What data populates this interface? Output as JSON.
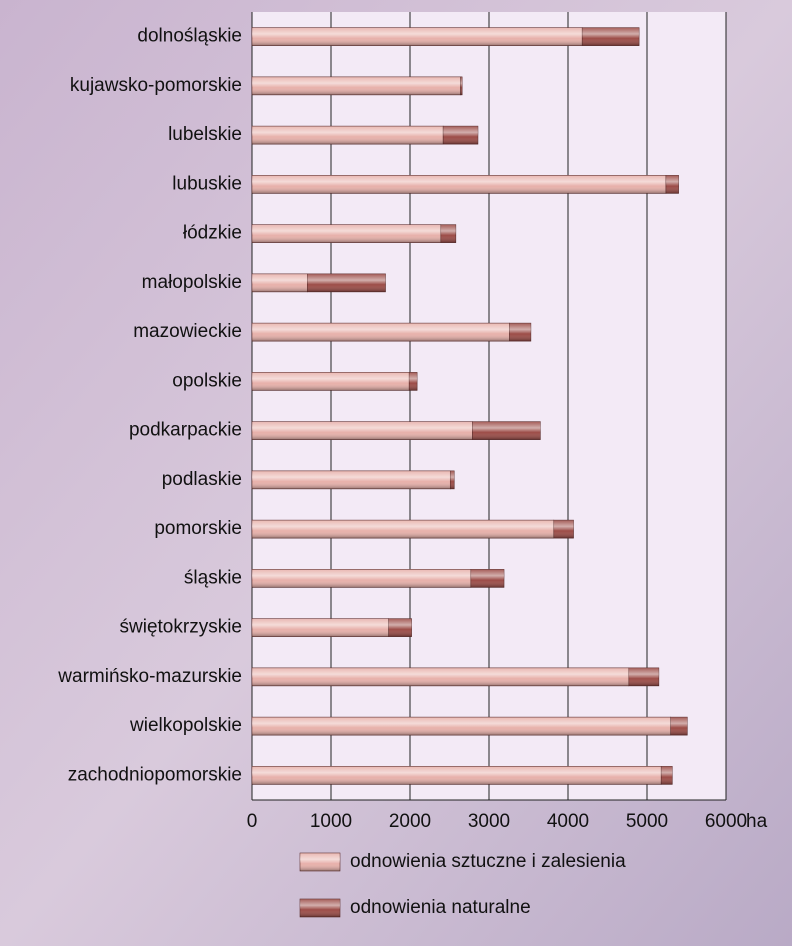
{
  "chart_data": {
    "type": "stacked-barh",
    "categories": [
      "dolnośląskie",
      "kujawsko-pomorskie",
      "lubelskie",
      "lubuskie",
      "łódzkie",
      "małopolskie",
      "mazowieckie",
      "opolskie",
      "podkarpackie",
      "podlaskie",
      "pomorskie",
      "śląskie",
      "świętokrzyskie",
      "warmińsko-mazurskie",
      "wielkopolskie",
      "zachodniopomorskie"
    ],
    "series": [
      {
        "name": "odnowienia sztuczne i zalesienia",
        "color": "#e7b0aa",
        "values": [
          4180,
          2640,
          2420,
          5240,
          2390,
          700,
          3260,
          1990,
          2790,
          2510,
          3820,
          2770,
          1730,
          4770,
          5300,
          5180
        ]
      },
      {
        "name": "odnowienia naturalne",
        "color": "#9c4c47",
        "values": [
          720,
          20,
          440,
          160,
          190,
          990,
          270,
          100,
          860,
          50,
          250,
          420,
          290,
          380,
          210,
          140
        ]
      }
    ],
    "x_label": "ha",
    "xlim": [
      0,
      6000
    ],
    "xticks": [
      0,
      1000,
      2000,
      3000,
      4000,
      5000,
      6000
    ],
    "grid": true,
    "legend": "bottom"
  }
}
